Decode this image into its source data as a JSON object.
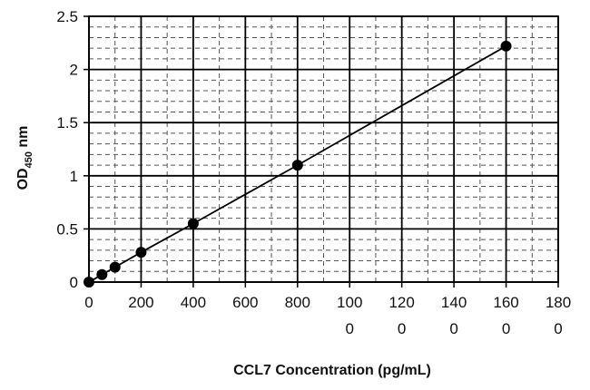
{
  "chart_data": {
    "type": "line",
    "title": "",
    "xlabel": "CCL7 Concentration (pg/mL)",
    "ylabel": {
      "main": "OD",
      "subscript": "450",
      "unit": " nm"
    },
    "xlim": [
      0,
      1800
    ],
    "ylim": [
      0,
      2.5
    ],
    "x_ticks": [
      {
        "value": 0,
        "lines": [
          "0"
        ]
      },
      {
        "value": 200,
        "lines": [
          "200"
        ]
      },
      {
        "value": 400,
        "lines": [
          "400"
        ]
      },
      {
        "value": 600,
        "lines": [
          "600"
        ]
      },
      {
        "value": 800,
        "lines": [
          "800"
        ]
      },
      {
        "value": 1000,
        "lines": [
          "100",
          "0"
        ]
      },
      {
        "value": 1200,
        "lines": [
          "120",
          "0"
        ]
      },
      {
        "value": 1400,
        "lines": [
          "140",
          "0"
        ]
      },
      {
        "value": 1600,
        "lines": [
          "160",
          "0"
        ]
      },
      {
        "value": 1800,
        "lines": [
          "180",
          "0"
        ]
      }
    ],
    "y_ticks": [
      {
        "value": 0,
        "label": "0"
      },
      {
        "value": 0.5,
        "label": "0.5"
      },
      {
        "value": 1,
        "label": "1"
      },
      {
        "value": 1.5,
        "label": "1.5"
      },
      {
        "value": 2,
        "label": "2"
      },
      {
        "value": 2.5,
        "label": "2.5"
      }
    ],
    "grid": true,
    "legend": "none",
    "series": [
      {
        "color": "#000000",
        "x": [
          0,
          50,
          100,
          200,
          400,
          800,
          1600
        ],
        "y": [
          0.0,
          0.07,
          0.14,
          0.28,
          0.55,
          1.1,
          2.22
        ]
      }
    ]
  }
}
